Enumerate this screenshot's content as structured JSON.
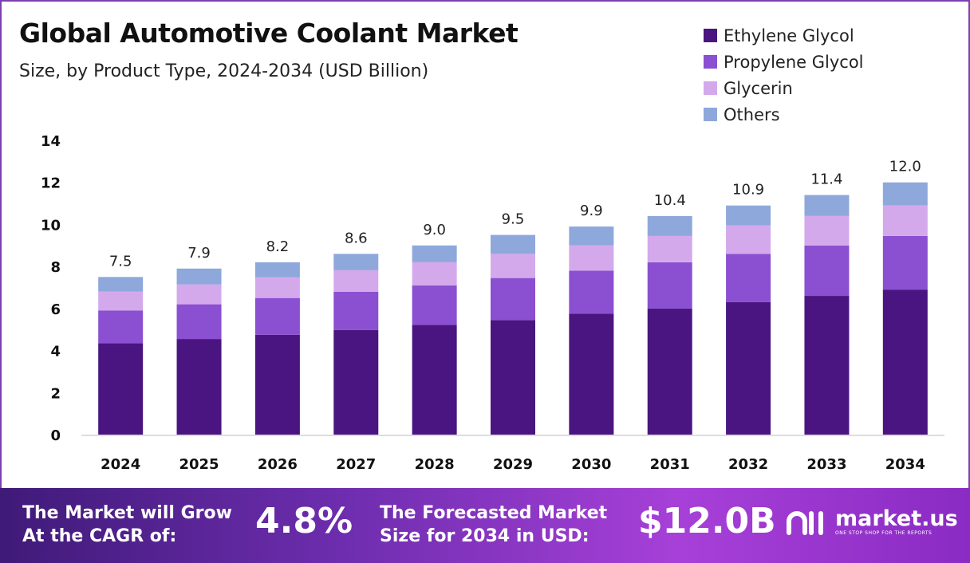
{
  "header": {
    "title": "Global Automotive Coolant Market",
    "subtitle": "Size, by Product Type, 2024-2034 (USD Billion)"
  },
  "legend": [
    {
      "label": "Ethylene Glycol",
      "color": "#4a1580"
    },
    {
      "label": "Propylene Glycol",
      "color": "#8b4fd1"
    },
    {
      "label": "Glycerin",
      "color": "#d4a9ec"
    },
    {
      "label": "Others",
      "color": "#8ea8db"
    }
  ],
  "chart_data": {
    "type": "bar",
    "stacked": true,
    "categories": [
      "2024",
      "2025",
      "2026",
      "2027",
      "2028",
      "2029",
      "2030",
      "2031",
      "2032",
      "2033",
      "2034"
    ],
    "series": [
      {
        "name": "Ethylene Glycol",
        "color": "#4a1580",
        "values": [
          4.35,
          4.55,
          4.75,
          4.98,
          5.22,
          5.45,
          5.75,
          6.0,
          6.3,
          6.6,
          6.9
        ]
      },
      {
        "name": "Propylene Glycol",
        "color": "#8b4fd1",
        "values": [
          1.55,
          1.65,
          1.75,
          1.82,
          1.88,
          2.0,
          2.05,
          2.2,
          2.3,
          2.4,
          2.55
        ]
      },
      {
        "name": "Glycerin",
        "color": "#d4a9ec",
        "values": [
          0.9,
          0.95,
          0.98,
          1.02,
          1.1,
          1.15,
          1.2,
          1.25,
          1.35,
          1.4,
          1.45
        ]
      },
      {
        "name": "Others",
        "color": "#8ea8db",
        "values": [
          0.7,
          0.75,
          0.72,
          0.78,
          0.8,
          0.9,
          0.9,
          0.95,
          0.95,
          1.0,
          1.1
        ]
      }
    ],
    "totals": [
      "7.5",
      "7.9",
      "8.2",
      "8.6",
      "9.0",
      "9.5",
      "9.9",
      "10.4",
      "10.9",
      "11.4",
      "12.0"
    ],
    "y_ticks": [
      0,
      2,
      4,
      6,
      8,
      10,
      12,
      14
    ],
    "ylim": [
      0,
      14
    ],
    "grid": false
  },
  "footer": {
    "cagr_text_1": "The Market will Grow",
    "cagr_text_2": "At the CAGR of:",
    "cagr_value": "4.8%",
    "forecast_text_1": "The Forecasted Market",
    "forecast_text_2": "Size for 2034 in USD:",
    "forecast_value": "$12.0B",
    "brand_name": "market.us",
    "brand_tagline": "ONE STOP SHOP FOR THE REPORTS"
  }
}
